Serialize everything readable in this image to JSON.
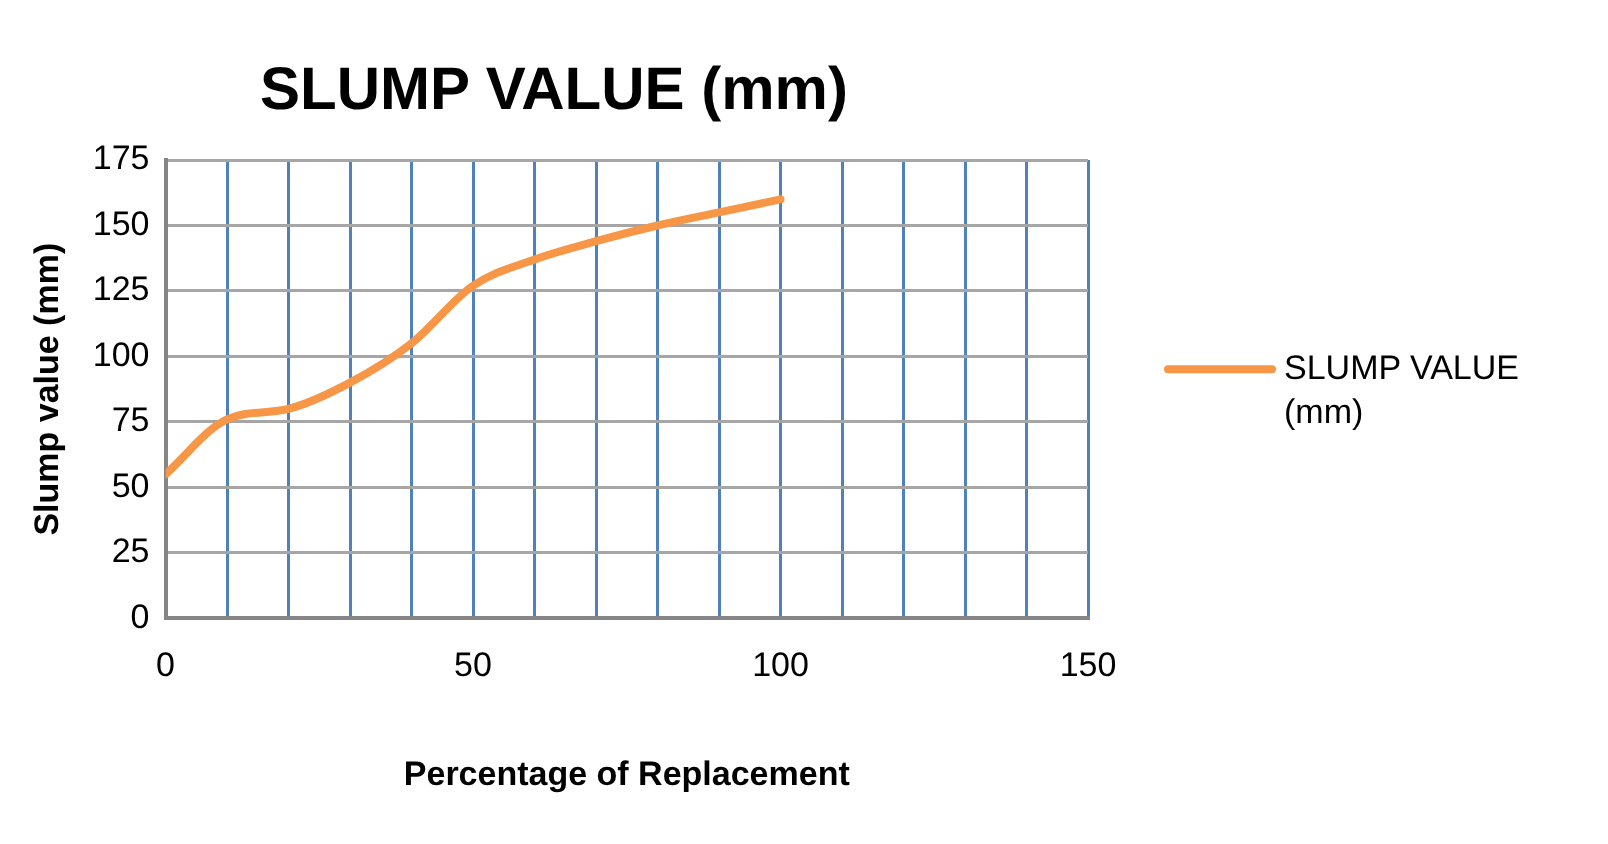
{
  "chart_data": {
    "type": "line",
    "title": "SLUMP VALUE (mm)",
    "xlabel": "Percentage of Replacement",
    "ylabel": "Slump value (mm)",
    "x": [
      0,
      10,
      20,
      30,
      40,
      50,
      60,
      70,
      80,
      90,
      100
    ],
    "series": [
      {
        "name": "SLUMP VALUE (mm)",
        "color": "#f79646",
        "values": [
          55,
          76,
          80,
          90,
          105,
          127,
          137,
          144,
          150,
          155,
          160
        ]
      }
    ],
    "xlim": [
      0,
      150
    ],
    "xticks": [
      0,
      {
        "value": 10,
        "label": null
      },
      {
        "value": 20,
        "label": null
      },
      {
        "value": 30,
        "label": null
      },
      {
        "value": 40,
        "label": null
      },
      50,
      {
        "value": 60,
        "label": null
      },
      {
        "value": 70,
        "label": null
      },
      {
        "value": 80,
        "label": null
      },
      {
        "value": 90,
        "label": null
      },
      100,
      {
        "value": 110,
        "label": null
      },
      {
        "value": 120,
        "label": null
      },
      {
        "value": 130,
        "label": null
      },
      {
        "value": 140,
        "label": null
      },
      150
    ],
    "ylim": [
      0,
      175
    ],
    "yticks": [
      0,
      25,
      50,
      75,
      100,
      125,
      150,
      175
    ],
    "grid": true,
    "legend": "right",
    "marker": "none",
    "line_style": "solid"
  }
}
